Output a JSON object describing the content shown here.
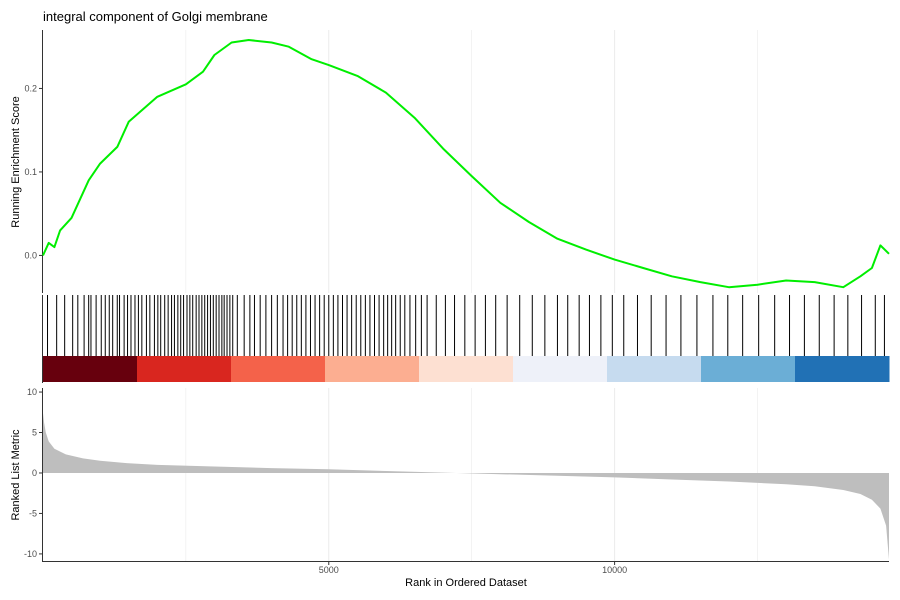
{
  "chart_data": {
    "type": "line",
    "title": "integral component of Golgi membrane",
    "xlabel": "Rank in Ordered Dataset",
    "xlim": [
      1,
      14800
    ],
    "x_ticks": [
      5000,
      10000
    ],
    "x_tick_labels": [
      "5000",
      "10000"
    ],
    "grid": "vertical",
    "colors": {
      "running_score": "#00ee00",
      "hits": "#000000",
      "ranked_metric_fill": "#bebebe",
      "gridline": "#ebebeb"
    },
    "panels": {
      "running_score": {
        "ylabel": "Running Enrichment Score",
        "ylim": [
          -0.045,
          0.27
        ],
        "y_ticks": [
          0.0,
          0.1,
          0.2
        ],
        "y_tick_labels": [
          "0.0",
          "0.1",
          "0.2"
        ],
        "series": [
          {
            "x": [
              1,
              100,
              200,
              300,
              500,
              800,
              1000,
              1300,
              1500,
              2000,
              2500,
              2800,
              3000,
              3300,
              3600,
              4000,
              4300,
              4700,
              5000,
              5500,
              6000,
              6500,
              7000,
              7500,
              8000,
              8500,
              9000,
              9500,
              10000,
              10500,
              11000,
              11500,
              12000,
              12500,
              13000,
              13500,
              14000,
              14300,
              14500,
              14650,
              14800
            ],
            "y": [
              0.0,
              0.015,
              0.01,
              0.03,
              0.045,
              0.09,
              0.11,
              0.13,
              0.16,
              0.19,
              0.205,
              0.22,
              0.24,
              0.255,
              0.258,
              0.255,
              0.25,
              0.235,
              0.228,
              0.215,
              0.195,
              0.165,
              0.128,
              0.095,
              0.063,
              0.04,
              0.02,
              0.007,
              -0.005,
              -0.015,
              -0.025,
              -0.032,
              -0.038,
              -0.035,
              -0.03,
              -0.032,
              -0.038,
              -0.025,
              -0.015,
              0.012,
              0.002
            ]
          }
        ]
      },
      "hits": {
        "positions": [
          80,
          240,
          380,
          520,
          610,
          720,
          800,
          840,
          930,
          1020,
          1090,
          1160,
          1220,
          1300,
          1340,
          1420,
          1480,
          1540,
          1610,
          1670,
          1730,
          1810,
          1870,
          1950,
          2010,
          2060,
          2130,
          2190,
          2250,
          2300,
          2360,
          2410,
          2460,
          2520,
          2570,
          2620,
          2680,
          2730,
          2780,
          2830,
          2880,
          2930,
          2980,
          3030,
          3080,
          3130,
          3170,
          3220,
          3270,
          3320,
          3400,
          3520,
          3620,
          3700,
          3800,
          3900,
          4000,
          4100,
          4200,
          4280,
          4360,
          4440,
          4520,
          4600,
          4680,
          4760,
          4840,
          4920,
          5000,
          5080,
          5160,
          5240,
          5320,
          5400,
          5480,
          5560,
          5640,
          5720,
          5800,
          5880,
          5960,
          6030,
          6100,
          6170,
          6250,
          6330,
          6420,
          6520,
          6620,
          6720,
          6880,
          7040,
          7200,
          7380,
          7560,
          7740,
          7920,
          8120,
          8340,
          8560,
          8780,
          9000,
          9180,
          9380,
          9560,
          9760,
          9960,
          10160,
          10400,
          10640,
          10900,
          11160,
          11440,
          11720,
          11980,
          12240,
          12520,
          12800,
          13060,
          13320,
          13580,
          13840,
          14080,
          14320,
          14560,
          14720
        ],
        "ranked_list_gradient": [
          "#67000d",
          "#d9261f",
          "#f4624a",
          "#fcae91",
          "#fde0d2",
          "#eef1f9",
          "#c6dbef",
          "#6baed6",
          "#2171b5"
        ]
      },
      "ranked_list_metric": {
        "ylabel": "Ranked List Metric",
        "ylim": [
          -11,
          10.5
        ],
        "y_ticks": [
          10,
          5,
          0,
          -5,
          -10
        ],
        "y_tick_labels": [
          "10",
          "5",
          "0",
          "-5",
          "-10"
        ],
        "series": [
          {
            "x": [
              1,
              20,
              50,
              100,
              200,
              400,
              700,
              1000,
              1500,
              2000,
              3000,
              4000,
              5000,
              6000,
              7000,
              8000,
              9000,
              10000,
              11000,
              12000,
              13000,
              13500,
              14000,
              14300,
              14500,
              14650,
              14750,
              14800
            ],
            "y": [
              7.4,
              6.2,
              5.0,
              3.9,
              3.0,
              2.3,
              1.8,
              1.5,
              1.2,
              1.0,
              0.8,
              0.6,
              0.45,
              0.25,
              0.05,
              -0.15,
              -0.35,
              -0.55,
              -0.8,
              -1.05,
              -1.4,
              -1.65,
              -2.1,
              -2.6,
              -3.3,
              -4.4,
              -6.5,
              -10.7
            ]
          }
        ]
      }
    }
  }
}
